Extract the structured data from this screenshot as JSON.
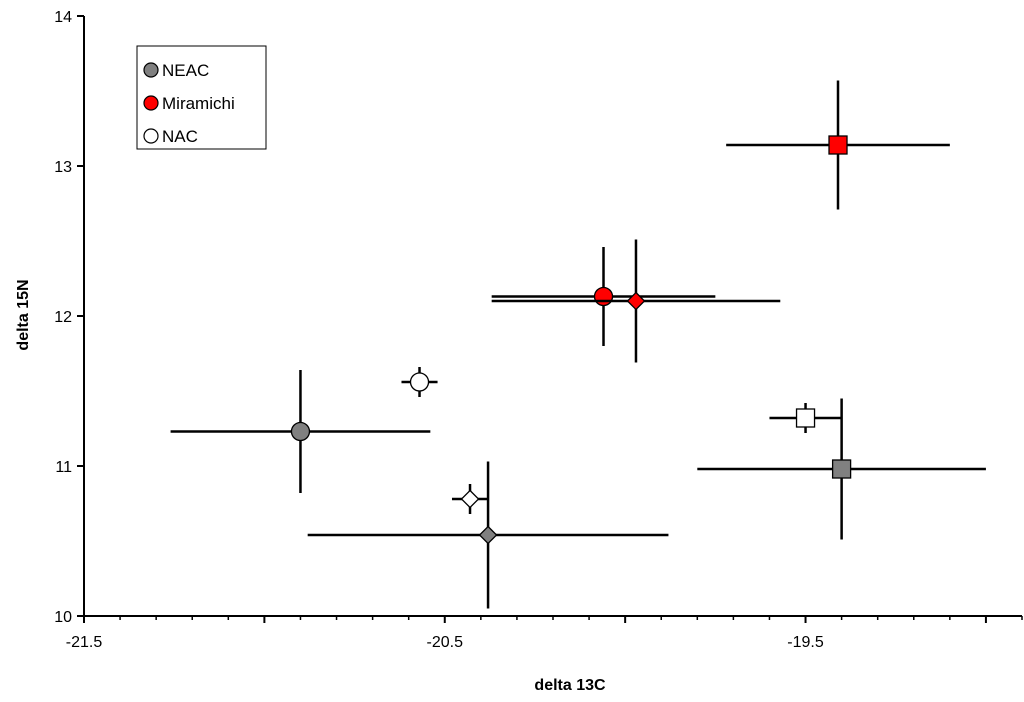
{
  "chart_data": {
    "type": "scatter",
    "xlabel": "delta 13C",
    "ylabel": "delta 15N",
    "xlim": [
      -21.5,
      -18.9
    ],
    "ylim": [
      10,
      14
    ],
    "x_ticks": [
      -21.5,
      -20.5,
      -19.5
    ],
    "x_tick_labels": [
      "-21.5",
      "-20.5",
      "-19.5"
    ],
    "x_minor_step": 0.1,
    "y_ticks": [
      10,
      11,
      12,
      13,
      14
    ],
    "y_tick_labels": [
      "10",
      "11",
      "12",
      "13",
      "14"
    ],
    "grid": false,
    "legend_position": "top-left",
    "legend": [
      {
        "name": "NEAC",
        "color": "#808080",
        "marker": "circle"
      },
      {
        "name": "Miramichi",
        "color": "#ff0000",
        "marker": "circle"
      },
      {
        "name": "NAC",
        "color": "#ffffff",
        "marker": "circle"
      }
    ],
    "points": [
      {
        "group": "NEAC",
        "marker": "circle",
        "color": "#808080",
        "x": -20.9,
        "y": 11.23,
        "x_err": 0.36,
        "y_err": 0.41
      },
      {
        "group": "NEAC",
        "marker": "diamond",
        "color": "#808080",
        "x": -20.38,
        "y": 10.54,
        "x_err": 0.5,
        "y_err": 0.49
      },
      {
        "group": "NEAC",
        "marker": "square",
        "color": "#808080",
        "x": -19.4,
        "y": 10.98,
        "x_err": 0.4,
        "y_err": 0.47
      },
      {
        "group": "Miramichi",
        "marker": "circle",
        "color": "#ff0000",
        "x": -20.06,
        "y": 12.13,
        "x_err": 0.31,
        "y_err": 0.33
      },
      {
        "group": "Miramichi",
        "marker": "diamond",
        "color": "#ff0000",
        "x": -19.97,
        "y": 12.1,
        "x_err": 0.4,
        "y_err": 0.41
      },
      {
        "group": "Miramichi",
        "marker": "square",
        "color": "#ff0000",
        "x": -19.41,
        "y": 13.14,
        "x_err": 0.31,
        "y_err": 0.43
      },
      {
        "group": "NAC",
        "marker": "circle",
        "color": "#ffffff",
        "x": -20.57,
        "y": 11.56,
        "x_err": 0.05,
        "y_err": 0.1
      },
      {
        "group": "NAC",
        "marker": "diamond",
        "color": "#ffffff",
        "x": -20.43,
        "y": 10.78,
        "x_err": 0.05,
        "y_err": 0.1
      },
      {
        "group": "NAC",
        "marker": "square",
        "color": "#ffffff",
        "x": -19.5,
        "y": 11.32,
        "x_err": 0.1,
        "y_err": 0.1
      }
    ]
  }
}
